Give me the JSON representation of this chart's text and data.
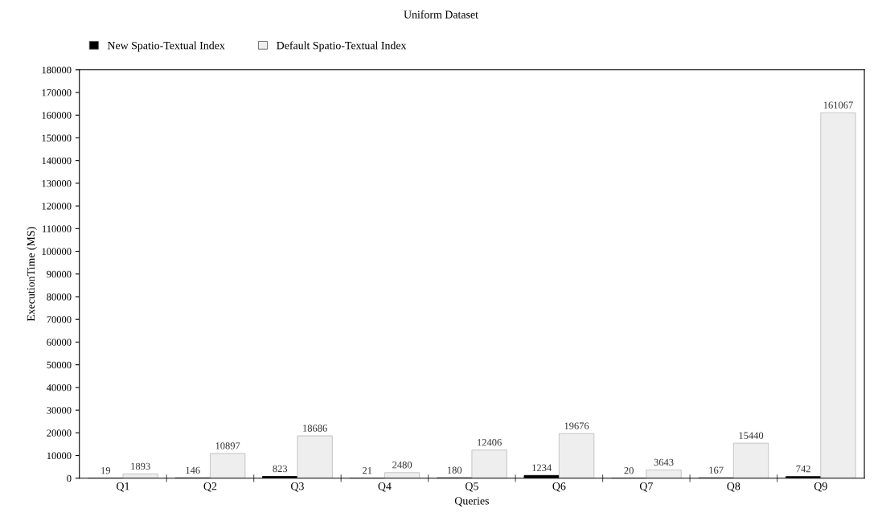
{
  "chart_data": {
    "type": "bar",
    "title": "Uniform Dataset",
    "xlabel": "Queries",
    "ylabel": "ExecutionTime (MS)",
    "categories": [
      "Q1",
      "Q2",
      "Q3",
      "Q4",
      "Q5",
      "Q6",
      "Q7",
      "Q8",
      "Q9"
    ],
    "series": [
      {
        "name": "New Spatio-Textual Index",
        "color": "#000000",
        "values": [
          19,
          146,
          823,
          21,
          180,
          1234,
          20,
          167,
          742
        ]
      },
      {
        "name": "Default Spatio-Textual Index",
        "color": "#eeeeee",
        "values": [
          1893,
          10897,
          18686,
          2480,
          12406,
          19676,
          3643,
          15440,
          161067
        ]
      }
    ],
    "ylim": [
      0,
      180000
    ],
    "yticks": [
      0,
      10000,
      20000,
      30000,
      40000,
      50000,
      60000,
      70000,
      80000,
      90000,
      100000,
      110000,
      120000,
      130000,
      140000,
      150000,
      160000,
      170000,
      180000
    ],
    "data_labels": true,
    "legend": "top",
    "grid": false
  }
}
